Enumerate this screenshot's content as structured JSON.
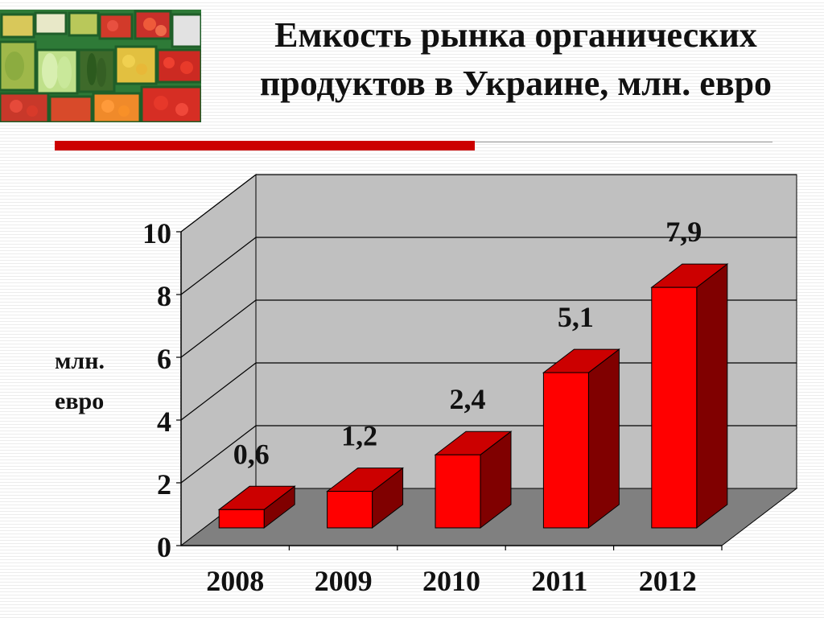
{
  "slide": {
    "title_line1": "Емкость рынка органических",
    "title_line2": "продуктов в Украине, млн. евро",
    "photo_alt": "vegetables-market-photo"
  },
  "colors": {
    "bar_front": "#ff0000",
    "bar_top": "#cc0000",
    "bar_side": "#800000",
    "wall": "#c0c0c0",
    "floor": "#808080",
    "accent_rule": "#cc0000"
  },
  "chart_data": {
    "type": "bar",
    "title": "",
    "ylabel_line1": "млн.",
    "ylabel_line2": "евро",
    "categories": [
      "2008",
      "2009",
      "2010",
      "2011",
      "2012"
    ],
    "values": [
      0.6,
      1.2,
      2.4,
      5.1,
      7.9
    ],
    "value_labels": [
      "0,6",
      "1,2",
      "2,4",
      "5,1",
      "7,9"
    ],
    "y_ticks": [
      "0",
      "2",
      "4",
      "6",
      "8",
      "10"
    ],
    "ylim": [
      0,
      10
    ],
    "grid": true,
    "style": "3d",
    "legend": "none"
  }
}
